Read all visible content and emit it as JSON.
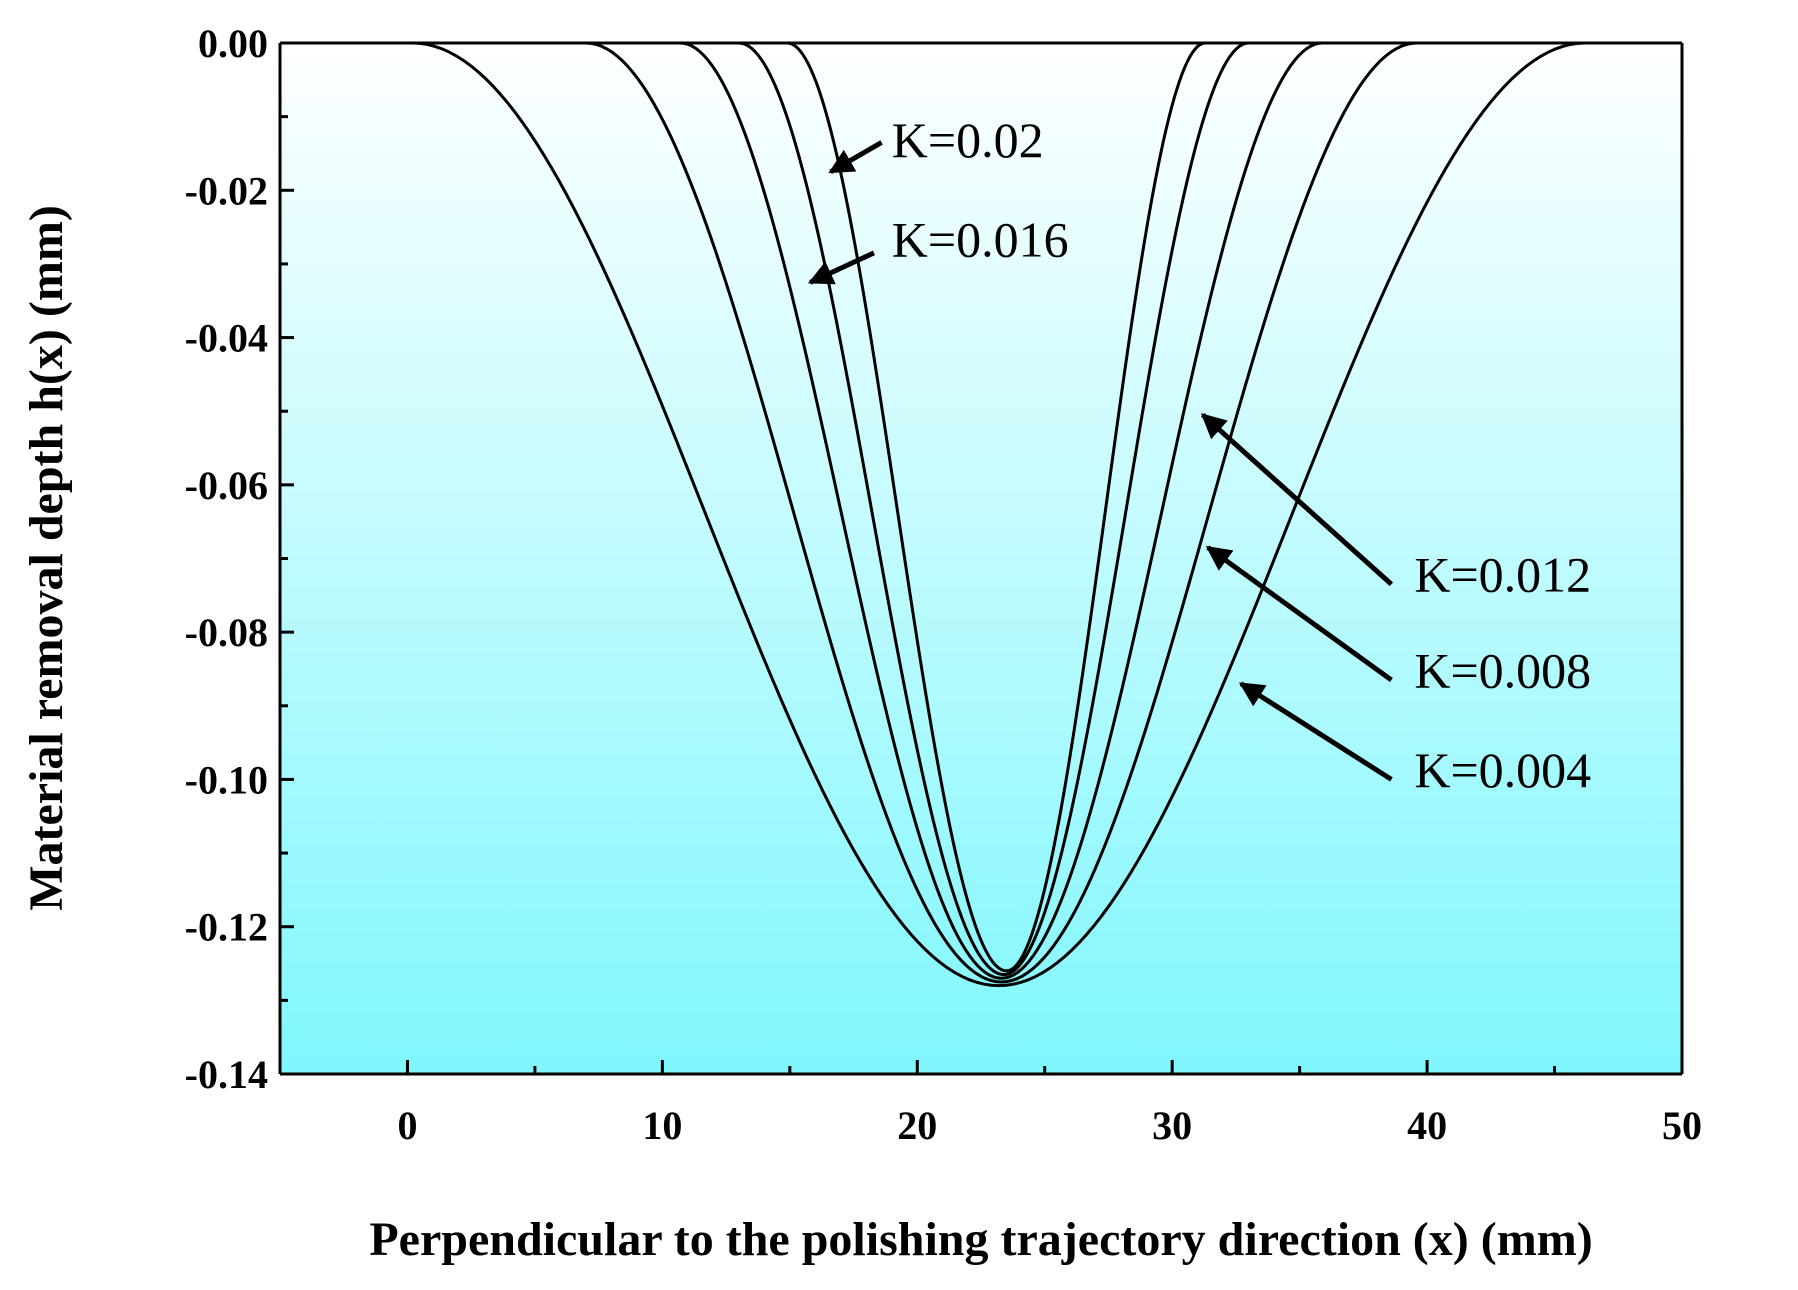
{
  "chart_data": {
    "type": "line",
    "title": "",
    "xlabel": "Perpendicular to the polishing trajectory direction  (x)  (mm)",
    "ylabel": "Material removal depth  h(x) (mm)",
    "xlim": [
      -5,
      50
    ],
    "ylim": [
      -0.14,
      0.0
    ],
    "x_ticks": [
      0,
      10,
      20,
      30,
      40,
      50
    ],
    "x_tick_labels": [
      "0",
      "10",
      "20",
      "30",
      "40",
      "50"
    ],
    "x_minor_step": 5,
    "y_ticks": [
      0.0,
      -0.02,
      -0.04,
      -0.06,
      -0.08,
      -0.1,
      -0.12,
      -0.14
    ],
    "y_tick_labels": [
      "0.00",
      "-0.02",
      "-0.04",
      "-0.06",
      "-0.08",
      "-0.10",
      "-0.12",
      "-0.14"
    ],
    "y_minor_step": 0.01,
    "grid": false,
    "legend": "none",
    "background_gradient": [
      "#ffffff",
      "#7ff7fd"
    ],
    "line_color": "#000000",
    "series": [
      {
        "name": "K=0.004",
        "x_start": 0.2,
        "x_end": 46.2,
        "x_min": 23.2,
        "y_min": -0.128
      },
      {
        "name": "K=0.008",
        "x_start": 7.0,
        "x_end": 39.6,
        "x_min": 23.3,
        "y_min": -0.1275
      },
      {
        "name": "K=0.012",
        "x_start": 10.7,
        "x_end": 35.9,
        "x_min": 23.3,
        "y_min": -0.127
      },
      {
        "name": "K=0.016",
        "x_start": 13.0,
        "x_end": 33.0,
        "x_min": 23.4,
        "y_min": -0.1265
      },
      {
        "name": "K=0.02",
        "x_start": 14.9,
        "x_end": 31.3,
        "x_min": 23.5,
        "y_min": -0.126
      }
    ],
    "annotations": [
      {
        "text": "K=0.02",
        "label_x": 19.0,
        "label_y": -0.0155,
        "arrow_from_x": 18.6,
        "arrow_from_y": -0.0135,
        "arrow_to_x": 16.6,
        "arrow_to_y": -0.0175
      },
      {
        "text": "K=0.016",
        "label_x": 19.0,
        "label_y": -0.029,
        "arrow_from_x": 18.3,
        "arrow_from_y": -0.0285,
        "arrow_to_x": 15.8,
        "arrow_to_y": -0.0325
      },
      {
        "text": "K=0.012",
        "label_x": 39.5,
        "label_y": -0.0745,
        "arrow_from_x": 38.6,
        "arrow_from_y": -0.0735,
        "arrow_to_x": 31.2,
        "arrow_to_y": -0.0505
      },
      {
        "text": "K=0.008",
        "label_x": 39.5,
        "label_y": -0.0875,
        "arrow_from_x": 38.6,
        "arrow_from_y": -0.0865,
        "arrow_to_x": 31.4,
        "arrow_to_y": -0.0685
      },
      {
        "text": "K=0.004",
        "label_x": 39.5,
        "label_y": -0.101,
        "arrow_from_x": 38.6,
        "arrow_from_y": -0.1,
        "arrow_to_x": 32.7,
        "arrow_to_y": -0.087
      }
    ]
  }
}
